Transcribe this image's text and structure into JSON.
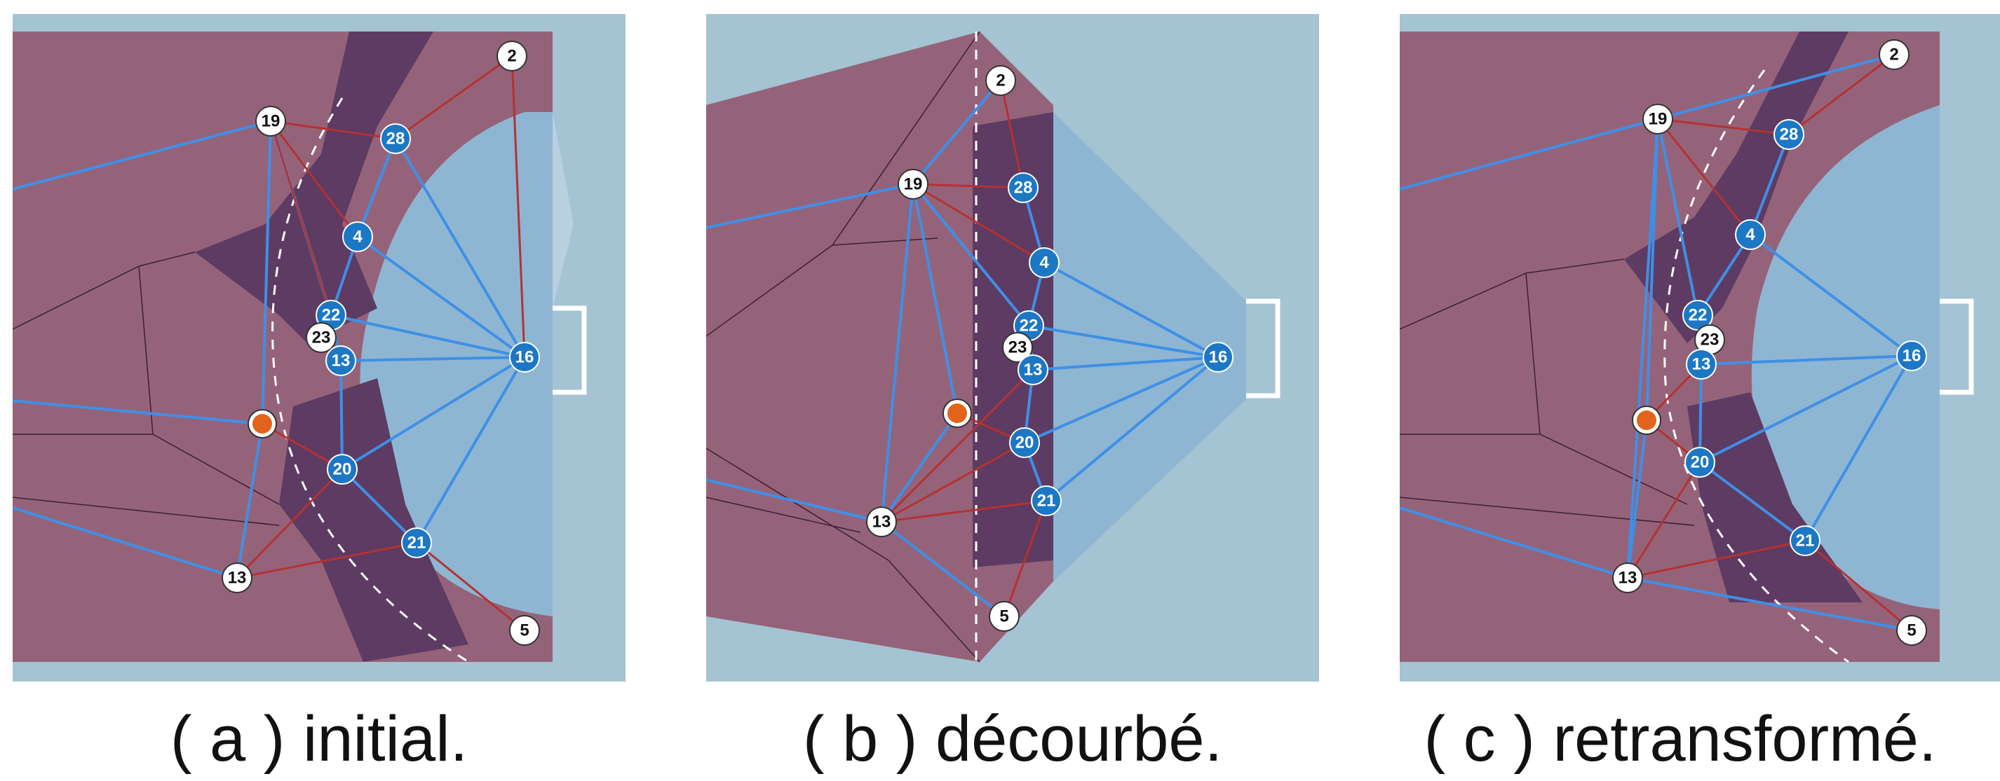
{
  "panels": [
    {
      "id": "a",
      "caption": "( a ) initial.",
      "players": [
        "2",
        "19",
        "28",
        "4",
        "22",
        "23",
        "13",
        "16",
        "20",
        "21",
        "13",
        "5"
      ]
    },
    {
      "id": "b",
      "caption": "( b ) décourbé.",
      "players": [
        "2",
        "19",
        "28",
        "4",
        "22",
        "23",
        "13",
        "16",
        "20",
        "21",
        "13",
        "5"
      ]
    },
    {
      "id": "c",
      "caption": "( c ) retransformé.",
      "players": [
        "2",
        "19",
        "28",
        "4",
        "22",
        "23",
        "13",
        "16",
        "20",
        "21",
        "13",
        "5"
      ]
    }
  ],
  "colors": {
    "pitch": "#a4c3d3",
    "attack_region": "#956379",
    "dark_overlap": "#5d3b63",
    "defense_region": "#8eb6d2",
    "blue_edge": "#3f8fe6",
    "red_edge": "#b43232",
    "attacker_node": "#ffffff",
    "defender_node": "#1c77c4",
    "ball": "#e2641b"
  }
}
